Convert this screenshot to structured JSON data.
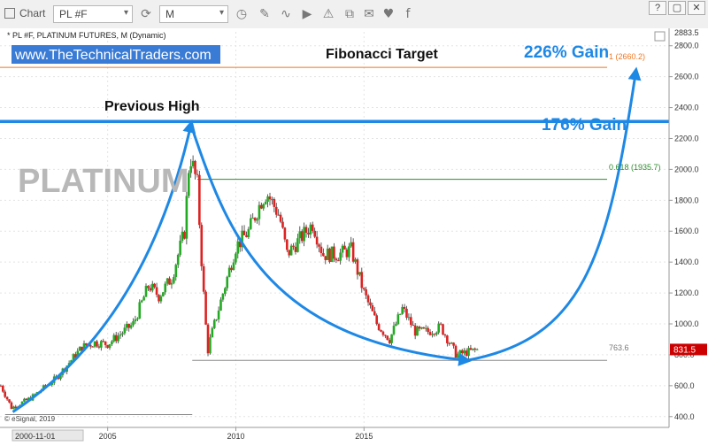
{
  "toolbar": {
    "chart_label": "Chart",
    "symbol_value": "PL #F",
    "interval_value": "M",
    "window_buttons": [
      "?",
      "▢",
      "✕"
    ]
  },
  "chart_data": {
    "type": "candlestick",
    "header": "* PL #F, PLATINUM FUTURES, M (Dynamic)",
    "watermark_url": "www.TheTechnicalTraders.com",
    "title": "PLATINUM",
    "copyright": "© eSignal, 2019",
    "ylim": [
      330,
      2890
    ],
    "y_ticks": [
      400,
      600,
      800,
      1000,
      1200,
      1400,
      1600,
      1800,
      2000,
      2200,
      2400,
      2600,
      2800
    ],
    "y_top_label": "2883.5",
    "x_ticks": [
      {
        "label": "2005",
        "year": 2005
      },
      {
        "label": "2010",
        "year": 2010
      },
      {
        "label": "2015",
        "year": 2015
      }
    ],
    "x_start_label": "2000-11-01",
    "xlim_year": [
      2000.8,
      2026.9
    ],
    "last_price": {
      "label": "831.5",
      "value": 831.5,
      "color": "#cc0000"
    },
    "levels": [
      {
        "name": "fib-target",
        "text": "1 (2660.2)",
        "value": 2660.2,
        "color": "#ee7722",
        "from_year": 2000.8
      },
      {
        "name": "fib-618",
        "text": "0.618 (1935.7)",
        "value": 1935.7,
        "color": "#2d8a2d",
        "from_year": 2008.5
      },
      {
        "name": "fib-low",
        "text": "763.6",
        "value": 763.6,
        "color": "#888888",
        "from_year": 2008.3
      },
      {
        "name": "low-2001",
        "text": "",
        "value": 413,
        "color": "#888888",
        "from_year": 2001.0,
        "to_year": 2008.3
      },
      {
        "name": "previous-high",
        "text": "",
        "value": 2310,
        "color": "#1e88e5",
        "from_year": 2000.8
      }
    ],
    "annotations": [
      {
        "name": "fibonacci-target-label",
        "text": "Fibonacci Target",
        "color": "#111111"
      },
      {
        "name": "gain-226-label",
        "text": "226% Gain",
        "color": "#1e88e5"
      },
      {
        "name": "previous-high-label",
        "text": "Previous High",
        "color": "#111111"
      },
      {
        "name": "gain-176-label",
        "text": "176% Gain",
        "color": "#1e88e5"
      }
    ],
    "anchors": [
      {
        "year": 2001.3,
        "value": 460
      },
      {
        "year": 2002.0,
        "value": 520
      },
      {
        "year": 2003.0,
        "value": 650
      },
      {
        "year": 2004.0,
        "value": 850
      },
      {
        "year": 2004.5,
        "value": 880
      },
      {
        "year": 2005.0,
        "value": 870
      },
      {
        "year": 2006.0,
        "value": 1000
      },
      {
        "year": 2006.6,
        "value": 1250
      },
      {
        "year": 2007.0,
        "value": 1180
      },
      {
        "year": 2007.5,
        "value": 1300
      },
      {
        "year": 2008.0,
        "value": 1600
      },
      {
        "year": 2008.2,
        "value": 2100
      },
      {
        "year": 2008.5,
        "value": 1900
      },
      {
        "year": 2008.7,
        "value": 1300
      },
      {
        "year": 2008.9,
        "value": 820
      },
      {
        "year": 2009.0,
        "value": 900
      },
      {
        "year": 2009.5,
        "value": 1200
      },
      {
        "year": 2010.0,
        "value": 1500
      },
      {
        "year": 2010.5,
        "value": 1600
      },
      {
        "year": 2011.0,
        "value": 1800
      },
      {
        "year": 2011.2,
        "value": 1850
      },
      {
        "year": 2011.7,
        "value": 1700
      },
      {
        "year": 2012.0,
        "value": 1450
      },
      {
        "year": 2012.5,
        "value": 1550
      },
      {
        "year": 2013.0,
        "value": 1650
      },
      {
        "year": 2013.4,
        "value": 1450
      },
      {
        "year": 2014.0,
        "value": 1450
      },
      {
        "year": 2014.5,
        "value": 1480
      },
      {
        "year": 2015.0,
        "value": 1200
      },
      {
        "year": 2015.5,
        "value": 1000
      },
      {
        "year": 2016.0,
        "value": 900
      },
      {
        "year": 2016.5,
        "value": 1100
      },
      {
        "year": 2017.0,
        "value": 950
      },
      {
        "year": 2017.5,
        "value": 950
      },
      {
        "year": 2018.0,
        "value": 980
      },
      {
        "year": 2018.6,
        "value": 800
      },
      {
        "year": 2019.1,
        "value": 820
      },
      {
        "year": 2019.4,
        "value": 831.5
      }
    ]
  }
}
